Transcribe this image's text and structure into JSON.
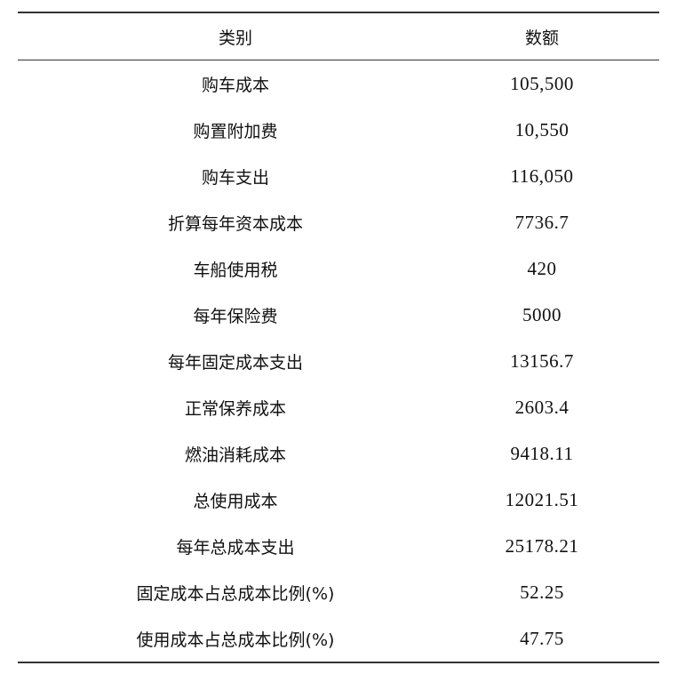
{
  "table": {
    "headers": [
      "类别",
      "数额"
    ],
    "rows": [
      {
        "category": "购车成本",
        "amount": "105,500"
      },
      {
        "category": "购置附加费",
        "amount": "10,550"
      },
      {
        "category": "购车支出",
        "amount": "116,050"
      },
      {
        "category": "折算每年资本成本",
        "amount": "7736.7"
      },
      {
        "category": "车船使用税",
        "amount": "420"
      },
      {
        "category": "每年保险费",
        "amount": "5000"
      },
      {
        "category": "每年固定成本支出",
        "amount": "13156.7"
      },
      {
        "category": "正常保养成本",
        "amount": "2603.4"
      },
      {
        "category": "燃油消耗成本",
        "amount": "9418.11"
      },
      {
        "category": "总使用成本",
        "amount": "12021.51"
      },
      {
        "category": "每年总成本支出",
        "amount": "25178.21"
      },
      {
        "category": "固定成本占总成本比例(%)",
        "amount": "52.25"
      },
      {
        "category": "使用成本占总成本比例(%)",
        "amount": "47.75"
      }
    ]
  }
}
